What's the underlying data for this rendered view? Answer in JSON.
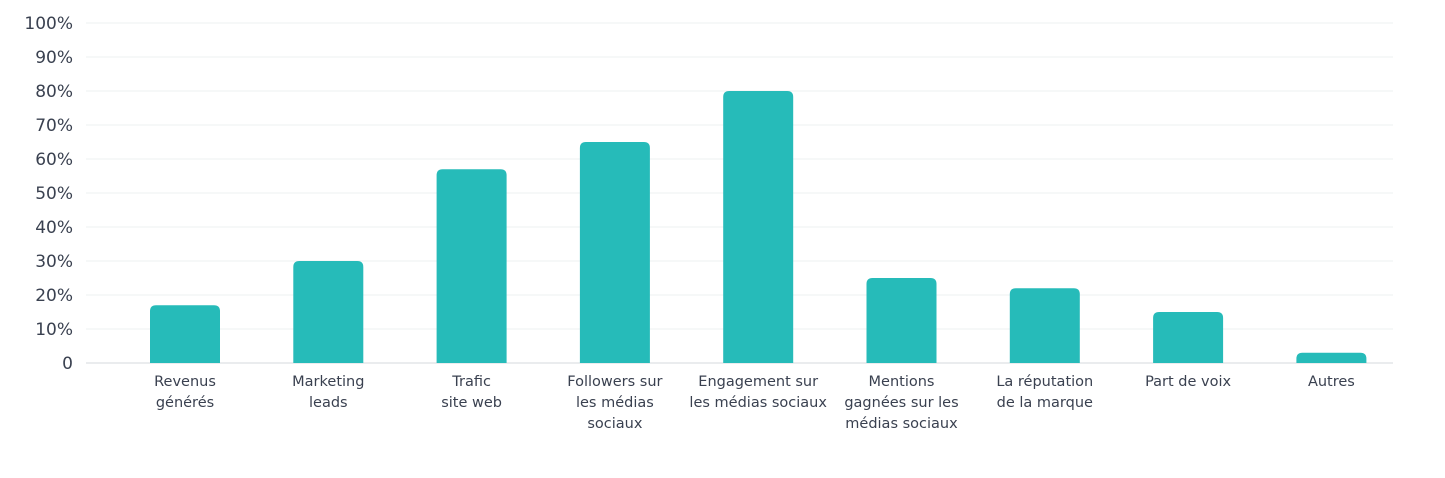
{
  "chart_data": {
    "type": "bar",
    "title": "",
    "xlabel": "",
    "ylabel": "",
    "ylim": [
      0,
      100
    ],
    "yticks": [
      {
        "value": 0,
        "label": "0"
      },
      {
        "value": 10,
        "label": "10%"
      },
      {
        "value": 20,
        "label": "20%"
      },
      {
        "value": 30,
        "label": "30%"
      },
      {
        "value": 40,
        "label": "40%"
      },
      {
        "value": 50,
        "label": "50%"
      },
      {
        "value": 60,
        "label": "60%"
      },
      {
        "value": 70,
        "label": "70%"
      },
      {
        "value": 80,
        "label": "80%"
      },
      {
        "value": 90,
        "label": "90%"
      },
      {
        "value": 100,
        "label": "100%"
      }
    ],
    "grid": true,
    "categories": [
      [
        "Revenus",
        "générés"
      ],
      [
        "Marketing",
        "leads"
      ],
      [
        "Trafic",
        "site web"
      ],
      [
        "Followers sur",
        "les médias",
        "sociaux"
      ],
      [
        "Engagement sur",
        "les médias sociaux"
      ],
      [
        "Mentions",
        "gagnées sur les",
        "médias sociaux"
      ],
      [
        "La réputation",
        "de la marque"
      ],
      [
        "Part de voix"
      ],
      [
        "Autres"
      ]
    ],
    "values": [
      17,
      30,
      57,
      65,
      80,
      25,
      22,
      15,
      3
    ],
    "bar_color": "#26bbb9"
  }
}
